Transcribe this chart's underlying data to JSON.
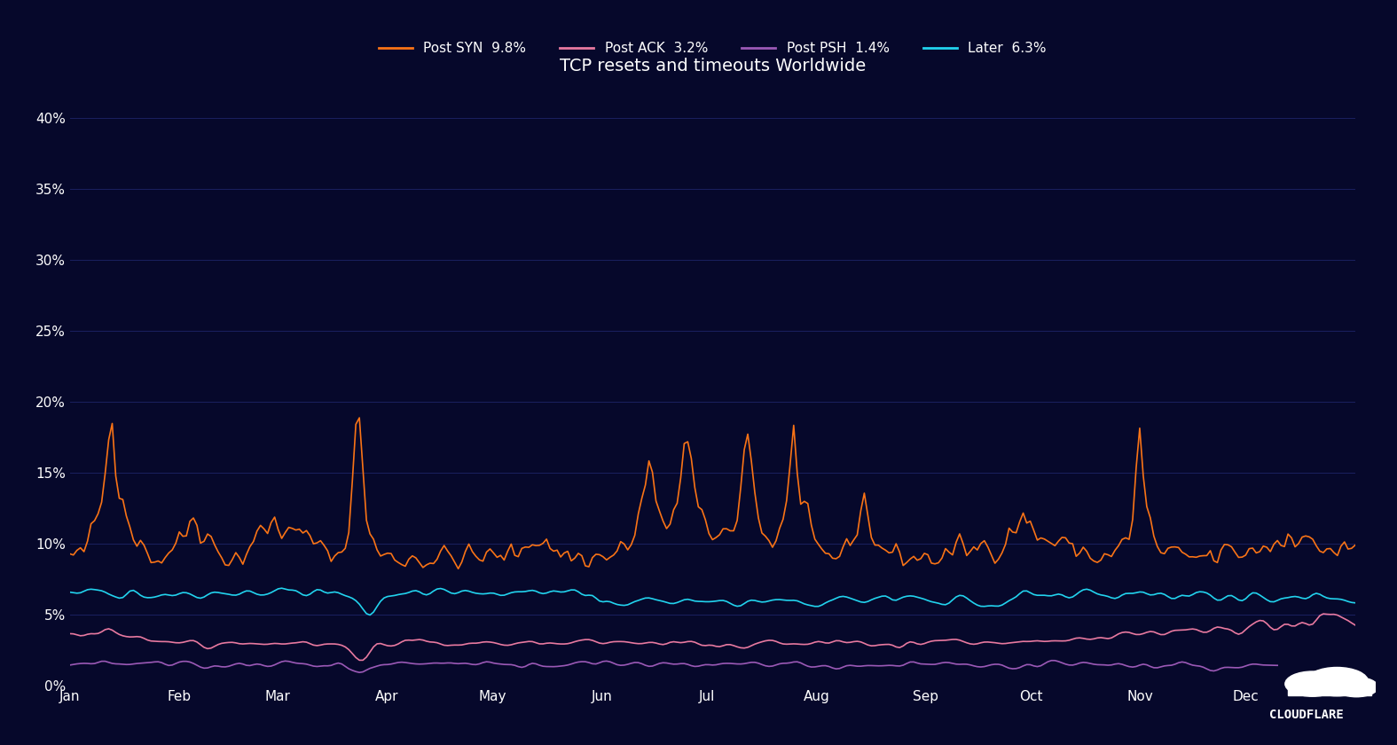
{
  "title": "TCP resets and timeouts Worldwide",
  "background_color": "#06082b",
  "plot_background_color": "#0a0d35",
  "grid_color": "#1a2060",
  "text_color": "#ffffff",
  "title_fontsize": 14,
  "legend_fontsize": 11,
  "tick_fontsize": 11,
  "series": [
    {
      "label": "Post SYN  9.8%",
      "color": "#f97316",
      "linewidth": 1.2
    },
    {
      "label": "Post ACK  3.2%",
      "color": "#e879a0",
      "linewidth": 1.2
    },
    {
      "label": "Post PSH  1.4%",
      "color": "#9b59b6",
      "linewidth": 1.2
    },
    {
      "label": "Later  6.3%",
      "color": "#22d3ee",
      "linewidth": 1.2
    }
  ],
  "yticks": [
    0,
    5,
    10,
    15,
    20,
    25,
    30,
    35,
    40
  ],
  "ylim": [
    0,
    42
  ],
  "xlabel_months": [
    "Jan",
    "Mar",
    "May",
    "Jul",
    "Sep",
    "Nov"
  ],
  "cloudflare_text": "CLOUDFLARE"
}
